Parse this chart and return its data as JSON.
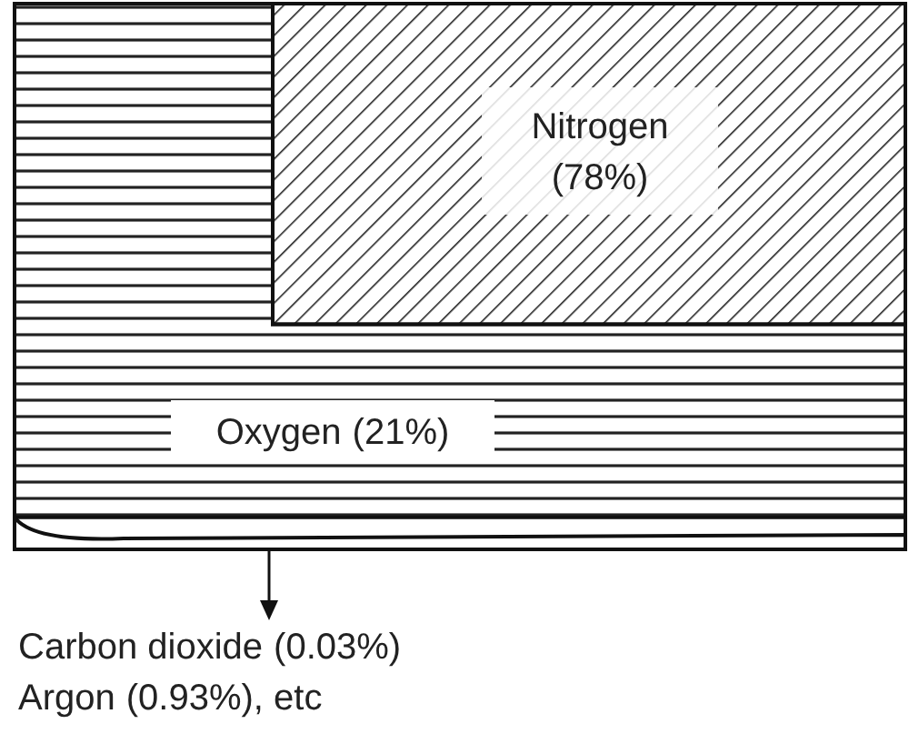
{
  "chart_data": {
    "type": "other",
    "categories": [
      "Nitrogen",
      "Oxygen",
      "Carbon dioxide",
      "Argon"
    ],
    "values": [
      78,
      21,
      0.03,
      0.93
    ],
    "value_labels": [
      "(78%)",
      "(21%)",
      "(0.03%)",
      "(0.93%), etc"
    ]
  }
}
